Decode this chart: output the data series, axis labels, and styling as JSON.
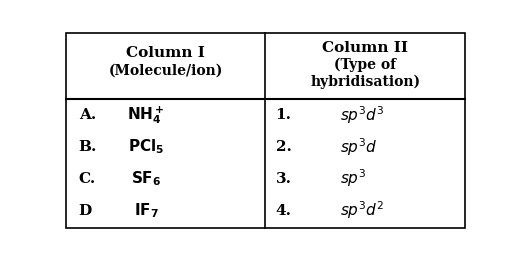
{
  "col1_header_line1": "Column I",
  "col1_header_line2": "(Molecule/ion)",
  "col2_header_line1": "Column II",
  "col2_header_line2": "(Type of",
  "col2_header_line3": "hybridisation)",
  "col1_letters": [
    "A.",
    "B.",
    "C.",
    "D"
  ],
  "col1_molecules_math": [
    "$\\mathbf{NH_4^+}$",
    "$\\mathbf{PCl_5}$",
    "$\\mathbf{SF_6}$",
    "$\\mathbf{IF_7}$"
  ],
  "col2_numbers": [
    "1.",
    "2.",
    "3.",
    "4."
  ],
  "col2_hyb_math": [
    "$sp^3d^3$",
    "$sp^3d$",
    "$sp^3$",
    "$sp^3d^2$"
  ],
  "bg_color": "#ffffff",
  "text_color": "#000000",
  "figsize": [
    5.18,
    2.58
  ],
  "dpi": 100
}
